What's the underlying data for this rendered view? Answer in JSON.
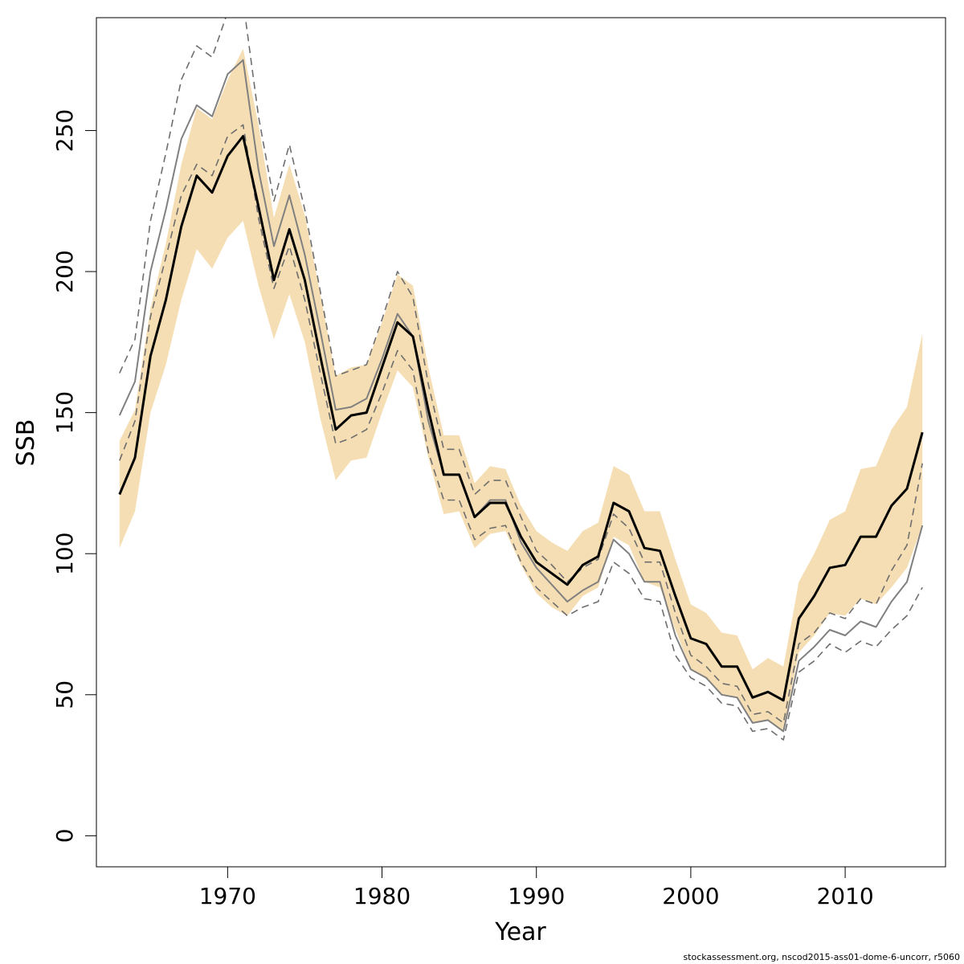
{
  "chart_data": {
    "type": "line",
    "title": "",
    "xlabel": "Year",
    "ylabel": "SSB",
    "xlim": [
      1961.5,
      2016.5
    ],
    "ylim": [
      -11,
      290
    ],
    "xticks": [
      1970,
      1980,
      1990,
      2000,
      2010
    ],
    "yticks": [
      0,
      50,
      100,
      150,
      200,
      250
    ],
    "grid": false,
    "footnote": "stockassessment.org, nscod2015-ass01-dome-6-uncorr, r5060",
    "colors": {
      "band": "#f5deb3",
      "main_line": "#000000",
      "compare_line": "#808080",
      "compare_ci": "#6e6e6e"
    },
    "x": [
      1963,
      1964,
      1965,
      1966,
      1967,
      1968,
      1969,
      1970,
      1971,
      1972,
      1973,
      1974,
      1975,
      1976,
      1977,
      1978,
      1979,
      1980,
      1981,
      1982,
      1983,
      1984,
      1985,
      1986,
      1987,
      1988,
      1989,
      1990,
      1991,
      1992,
      1993,
      1994,
      1995,
      1996,
      1997,
      1998,
      1999,
      2000,
      2001,
      2002,
      2003,
      2004,
      2005,
      2006,
      2007,
      2008,
      2009,
      2010,
      2011,
      2012,
      2013,
      2014,
      2015
    ],
    "series": [
      {
        "role": "estimate",
        "values": [
          121,
          134,
          170,
          190,
          216,
          234,
          228,
          241,
          248,
          223,
          197,
          215,
          197,
          170,
          144,
          149,
          150,
          166,
          182,
          177,
          151,
          128,
          128,
          113,
          118,
          118,
          106,
          97,
          93,
          89,
          96,
          99,
          118,
          115,
          102,
          101,
          85,
          70,
          68,
          60,
          60,
          49,
          51,
          48,
          77,
          85,
          95,
          96,
          106,
          106,
          117,
          123,
          143
        ]
      },
      {
        "role": "ci-upper",
        "values": [
          140,
          151,
          187,
          210,
          238,
          258,
          254,
          268,
          279,
          252,
          219,
          238,
          220,
          192,
          163,
          166,
          167,
          182,
          199,
          195,
          166,
          142,
          142,
          125,
          131,
          130,
          117,
          108,
          104,
          101,
          108,
          111,
          131,
          128,
          115,
          115,
          98,
          82,
          79,
          72,
          71,
          59,
          63,
          60,
          90,
          100,
          112,
          115,
          130,
          131,
          144,
          152,
          178
        ]
      },
      {
        "role": "ci-lower",
        "values": [
          102,
          115,
          150,
          167,
          190,
          208,
          201,
          212,
          218,
          195,
          176,
          192,
          175,
          148,
          126,
          133,
          134,
          150,
          165,
          159,
          134,
          114,
          115,
          102,
          107,
          108,
          96,
          86,
          81,
          78,
          85,
          88,
          106,
          103,
          90,
          88,
          73,
          59,
          56,
          50,
          49,
          40,
          41,
          37,
          65,
          71,
          79,
          78,
          84,
          82,
          88,
          95,
          110
        ]
      },
      {
        "role": "comparison",
        "values": [
          149,
          161,
          200,
          222,
          247,
          259,
          255,
          270,
          275,
          236,
          209,
          227,
          206,
          179,
          151,
          152,
          155,
          169,
          185,
          177,
          147,
          128,
          128,
          113,
          119,
          119,
          104,
          95,
          89,
          83,
          87,
          90,
          105,
          100,
          90,
          90,
          71,
          59,
          56,
          50,
          49,
          40,
          41,
          37,
          62,
          67,
          73,
          71,
          76,
          74,
          83,
          90,
          110
        ]
      },
      {
        "role": "comparison-ci-upper",
        "values": [
          164,
          176,
          218,
          242,
          268,
          280,
          276,
          292,
          296,
          255,
          225,
          245,
          222,
          193,
          163,
          165,
          167,
          183,
          200,
          191,
          160,
          137,
          137,
          121,
          126,
          126,
          113,
          101,
          96,
          90,
          95,
          98,
          114,
          109,
          97,
          97,
          79,
          64,
          60,
          54,
          53,
          43,
          44,
          40,
          68,
          72,
          79,
          77,
          84,
          82,
          94,
          103,
          132
        ]
      },
      {
        "role": "comparison-ci-lower",
        "values": [
          133,
          147,
          184,
          205,
          227,
          238,
          234,
          248,
          252,
          219,
          194,
          209,
          190,
          164,
          139,
          141,
          144,
          157,
          172,
          165,
          136,
          119,
          119,
          105,
          109,
          110,
          97,
          88,
          83,
          78,
          81,
          83,
          97,
          93,
          84,
          83,
          64,
          56,
          53,
          47,
          46,
          37,
          38,
          34,
          58,
          62,
          68,
          65,
          69,
          67,
          73,
          78,
          88
        ]
      }
    ]
  }
}
